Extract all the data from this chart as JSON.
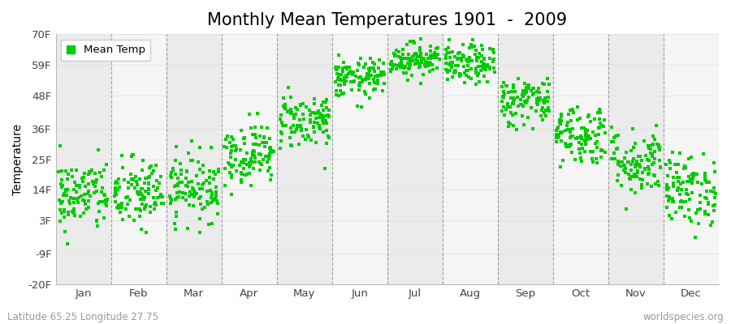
{
  "title": "Monthly Mean Temperatures 1901  -  2009",
  "ylabel": "Temperature",
  "xlabel_labels": [
    "Jan",
    "Feb",
    "Mar",
    "Apr",
    "May",
    "Jun",
    "Jul",
    "Aug",
    "Sep",
    "Oct",
    "Nov",
    "Dec"
  ],
  "ytick_labels": [
    "-20F",
    "-9F",
    "3F",
    "14F",
    "25F",
    "36F",
    "48F",
    "59F",
    "70F"
  ],
  "ytick_values": [
    -20,
    -9,
    3,
    14,
    25,
    36,
    48,
    59,
    70
  ],
  "ylim": [
    -20,
    70
  ],
  "dot_color": "#00cc00",
  "dot_size": 8,
  "background_color": "#ffffff",
  "plot_bg_color_odd": "#ebebeb",
  "plot_bg_color_even": "#f5f5f5",
  "legend_label": "Mean Temp",
  "footer_left": "Latitude 65.25 Longitude 27.75",
  "footer_right": "worldspecies.org",
  "n_years": 109,
  "monthly_means_F": [
    12.0,
    12.5,
    15.0,
    27.0,
    39.0,
    54.0,
    61.0,
    59.0,
    46.0,
    34.0,
    24.0,
    14.0
  ],
  "monthly_stds_F": [
    6.5,
    6.5,
    6.0,
    5.5,
    5.0,
    3.5,
    3.0,
    3.5,
    4.5,
    5.5,
    6.0,
    6.5
  ],
  "seed": 42,
  "vline_color": "#666666",
  "title_fontsize": 15,
  "axis_label_fontsize": 10,
  "tick_fontsize": 9.5,
  "footer_fontsize": 8.5
}
